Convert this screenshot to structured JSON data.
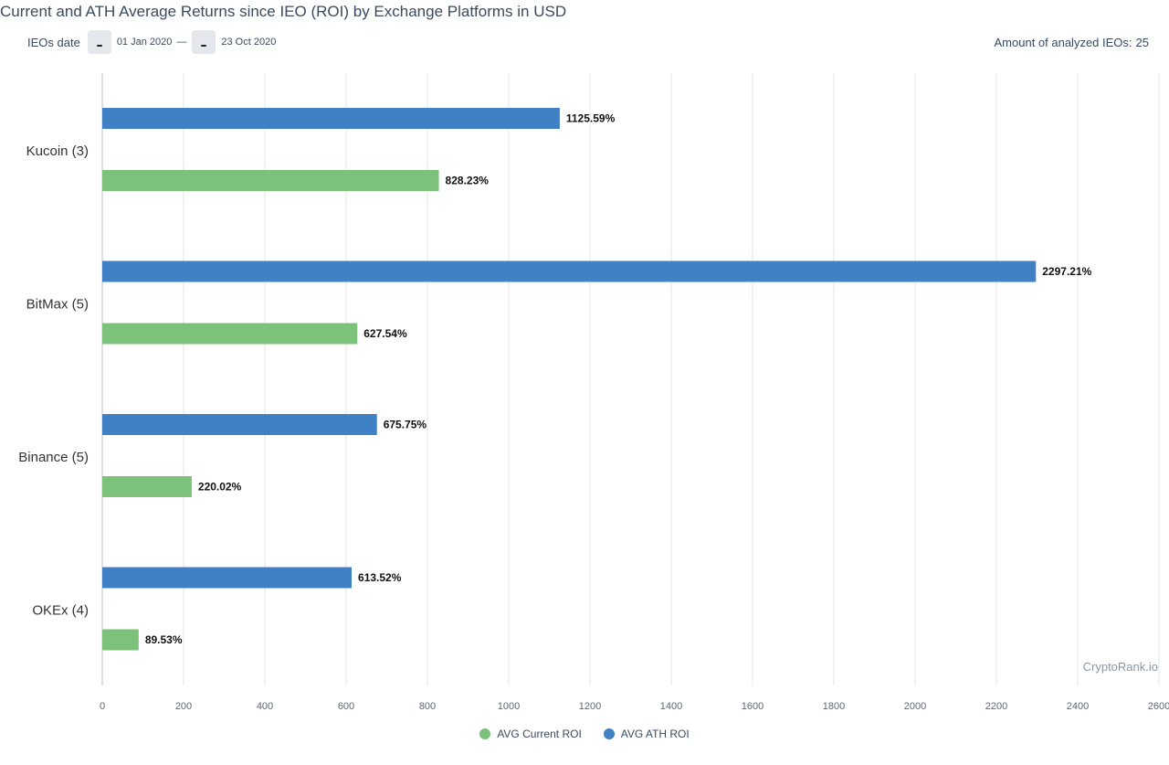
{
  "header": {
    "title": "Current and ATH Average Returns since IEO (ROI) by Exchange Platforms in USD",
    "filter_label": "IEOs date",
    "date_from": "01 Jan 2020",
    "date_sep": "—",
    "date_to": "23 Oct 2020",
    "amount_label": "Amount of analyzed IEOs:",
    "amount_value": "25"
  },
  "credit": "CryptoRank.io",
  "colors": {
    "current": "#7cc27a",
    "ath": "#4080c4",
    "grid": "#e3e6ea",
    "axis": "#b9c0c8"
  },
  "chart_data": {
    "type": "bar",
    "orientation": "horizontal",
    "categories": [
      "Kucoin (3)",
      "BitMax (5)",
      "Binance (5)",
      "OKEx (4)"
    ],
    "series": [
      {
        "name": "AVG ATH ROI",
        "values": [
          1125.59,
          2297.21,
          675.75,
          613.52
        ],
        "labels": [
          "1125.59%",
          "2297.21%",
          "675.75%",
          "613.52%"
        ]
      },
      {
        "name": "AVG Current ROI",
        "values": [
          828.23,
          627.54,
          220.02,
          89.53
        ],
        "labels": [
          "828.23%",
          "627.54%",
          "220.02%",
          "89.53%"
        ]
      }
    ],
    "xlim": [
      0,
      2600
    ],
    "xticks": [
      0,
      200,
      400,
      600,
      800,
      1000,
      1200,
      1400,
      1600,
      1800,
      2000,
      2200,
      2400,
      2600
    ],
    "grid": true,
    "legend": [
      {
        "name": "AVG Current ROI"
      },
      {
        "name": "AVG ATH ROI"
      }
    ],
    "legend_position": "bottom"
  }
}
